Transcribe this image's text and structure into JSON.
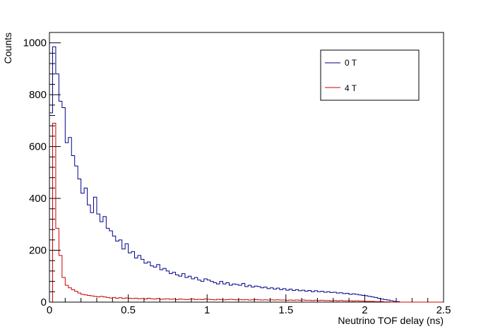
{
  "chart_data": {
    "type": "histogram",
    "xlabel": "Neutrino TOF delay (ns)",
    "ylabel": "Counts",
    "xlim": [
      0,
      2.5
    ],
    "ylim": [
      0,
      1040
    ],
    "x_ticks": [
      0,
      0.5,
      1,
      1.5,
      2,
      2.5
    ],
    "x_tick_labels": [
      "0",
      "0.5",
      "1",
      "1.5",
      "2",
      "2.5"
    ],
    "y_ticks": [
      0,
      200,
      400,
      600,
      800,
      1000
    ],
    "y_tick_labels": [
      "0",
      "200",
      "400",
      "600",
      "800",
      "1000"
    ],
    "grid": false,
    "legend_position": "top-right",
    "bin_width": 0.02,
    "series": [
      {
        "name": "0 T",
        "color": "#00008b",
        "values": [
          730,
          985,
          880,
          775,
          750,
          615,
          635,
          565,
          525,
          475,
          420,
          440,
          375,
          345,
          405,
          340,
          310,
          330,
          285,
          275,
          255,
          235,
          240,
          205,
          225,
          190,
          195,
          170,
          180,
          165,
          150,
          155,
          140,
          135,
          145,
          125,
          130,
          120,
          110,
          115,
          105,
          100,
          110,
          95,
          100,
          90,
          95,
          85,
          80,
          90,
          85,
          80,
          75,
          70,
          80,
          70,
          75,
          65,
          70,
          68,
          65,
          72,
          60,
          65,
          58,
          62,
          60,
          55,
          58,
          52,
          55,
          50,
          54,
          48,
          52,
          46,
          50,
          45,
          48,
          44,
          46,
          42,
          45,
          40,
          44,
          40,
          42,
          38,
          40,
          37,
          38,
          35,
          36,
          33,
          34,
          30,
          32,
          30,
          28,
          26,
          25,
          22,
          20,
          18,
          15,
          12,
          10,
          8,
          5,
          3,
          2,
          0,
          0,
          0,
          0,
          0,
          0,
          0,
          0,
          0,
          0,
          0,
          0,
          0,
          0
        ]
      },
      {
        "name": "4 T",
        "color": "#cc0000",
        "values": [
          0,
          690,
          285,
          180,
          95,
          65,
          55,
          48,
          42,
          35,
          30,
          28,
          26,
          24,
          22,
          20,
          22,
          20,
          18,
          16,
          18,
          15,
          17,
          14,
          16,
          15,
          14,
          15,
          13,
          14,
          12,
          15,
          13,
          12,
          14,
          11,
          12,
          13,
          11,
          12,
          10,
          12,
          11,
          10,
          11,
          12,
          10,
          11,
          10,
          12,
          11,
          10,
          9,
          11,
          10,
          9,
          10,
          11,
          10,
          9,
          10,
          9,
          10,
          8,
          9,
          10,
          9,
          8,
          9,
          8,
          9,
          8,
          9,
          8,
          8,
          7,
          8,
          7,
          8,
          7,
          8,
          7,
          7,
          6,
          7,
          6,
          7,
          6,
          6,
          5,
          6,
          5,
          6,
          5,
          5,
          5,
          4,
          5,
          4,
          4,
          3,
          3,
          3,
          2,
          2,
          2,
          1,
          1,
          0,
          0,
          0,
          0,
          0,
          0,
          0,
          0,
          0,
          0,
          0,
          0,
          0,
          0,
          0,
          0,
          0
        ]
      }
    ]
  }
}
